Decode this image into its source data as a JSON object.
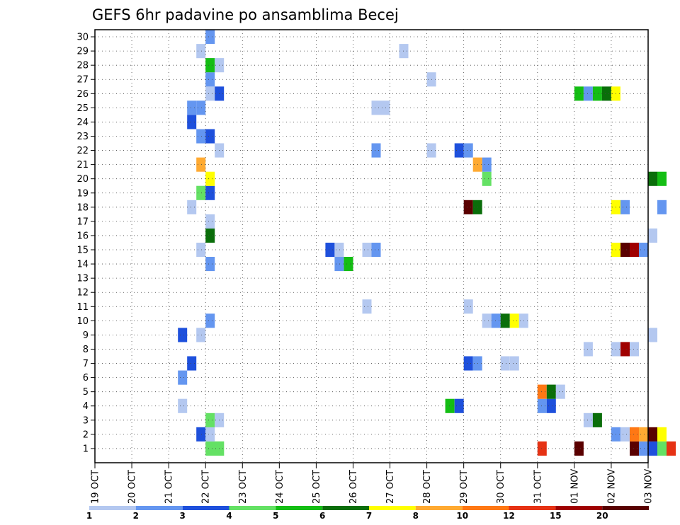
{
  "chart_data": {
    "type": "heatmap",
    "title": "GEFS 6hr padavine po ansamblima Becej",
    "xlabel": "",
    "ylabel": "",
    "x_tick_labels": [
      "19 OCT",
      "20 OCT",
      "21 OCT",
      "22 OCT",
      "23 OCT",
      "24 OCT",
      "25 OCT",
      "26 OCT",
      "27 OCT",
      "28 OCT",
      "29 OCT",
      "30 OCT",
      "31 OCT",
      "01 NOV",
      "02 NOV",
      "03 NOV"
    ],
    "y_tick_labels": [
      "1",
      "2",
      "3",
      "4",
      "5",
      "6",
      "7",
      "8",
      "9",
      "10",
      "11",
      "12",
      "13",
      "14",
      "15",
      "16",
      "17",
      "18",
      "19",
      "20",
      "21",
      "22",
      "23",
      "24",
      "25",
      "26",
      "27",
      "28",
      "29",
      "30"
    ],
    "time_step_hours": 6,
    "grid": true,
    "legend_placement": "bottom",
    "legend": {
      "colors": [
        "#b4c8f0",
        "#6496f0",
        "#1e50dc",
        "#64e164",
        "#14be14",
        "#0a6e0a",
        "#ffff00",
        "#ffaa32",
        "#ff7814",
        "#e63214",
        "#a00000",
        "#5a0000"
      ],
      "labels": [
        "1",
        "2",
        "3",
        "4",
        "5",
        "6",
        "7",
        "8",
        "10",
        "12",
        "15",
        "20"
      ]
    },
    "color_bins": [
      1,
      2,
      3,
      4,
      5,
      6,
      7,
      8,
      10,
      12,
      15,
      20
    ],
    "cells": [
      [
        0,
        12,
        4,
        2
      ],
      [
        0,
        13,
        4,
        1
      ],
      [
        0,
        48,
        10
      ],
      [
        0,
        52,
        12
      ],
      [
        0,
        58,
        12
      ],
      [
        0,
        59,
        2
      ],
      [
        0,
        60,
        3
      ],
      [
        0,
        61,
        4
      ],
      [
        0,
        62,
        10
      ],
      [
        1,
        11,
        3
      ],
      [
        1,
        12,
        1
      ],
      [
        1,
        56,
        2
      ],
      [
        1,
        57,
        1
      ],
      [
        1,
        58,
        9
      ],
      [
        1,
        59,
        8
      ],
      [
        1,
        60,
        12
      ],
      [
        1,
        61,
        7
      ],
      [
        2,
        12,
        4
      ],
      [
        2,
        13,
        1
      ],
      [
        2,
        53,
        1
      ],
      [
        2,
        54,
        6
      ],
      [
        3,
        9,
        1
      ],
      [
        3,
        38,
        5
      ],
      [
        3,
        39,
        3
      ],
      [
        3,
        48,
        2
      ],
      [
        3,
        49,
        3
      ],
      [
        4,
        48,
        9
      ],
      [
        4,
        49,
        6
      ],
      [
        4,
        50,
        1
      ],
      [
        5,
        9,
        2
      ],
      [
        6,
        10,
        3
      ],
      [
        6,
        40,
        3
      ],
      [
        6,
        41,
        2
      ],
      [
        6,
        44,
        1
      ],
      [
        6,
        45,
        1
      ],
      [
        7,
        53,
        1
      ],
      [
        7,
        56,
        1
      ],
      [
        7,
        57,
        11
      ],
      [
        7,
        58,
        1
      ],
      [
        8,
        9,
        3
      ],
      [
        8,
        11,
        1
      ],
      [
        8,
        60,
        1
      ],
      [
        9,
        12,
        2
      ],
      [
        9,
        42,
        1
      ],
      [
        9,
        43,
        2
      ],
      [
        9,
        44,
        6
      ],
      [
        9,
        45,
        7
      ],
      [
        9,
        46,
        1
      ],
      [
        10,
        29,
        1
      ],
      [
        10,
        40,
        1
      ],
      [
        13,
        12,
        2
      ],
      [
        13,
        26,
        2
      ],
      [
        13,
        27,
        5
      ],
      [
        14,
        11,
        1
      ],
      [
        14,
        25,
        3
      ],
      [
        14,
        26,
        1
      ],
      [
        14,
        29,
        1
      ],
      [
        14,
        30,
        2
      ],
      [
        14,
        56,
        7
      ],
      [
        14,
        57,
        12
      ],
      [
        14,
        58,
        11
      ],
      [
        14,
        59,
        2
      ],
      [
        15,
        12,
        6
      ],
      [
        15,
        60,
        1
      ],
      [
        16,
        12,
        1
      ],
      [
        17,
        10,
        1
      ],
      [
        17,
        40,
        12
      ],
      [
        17,
        41,
        6
      ],
      [
        17,
        56,
        7
      ],
      [
        17,
        57,
        2
      ],
      [
        17,
        61,
        2
      ],
      [
        18,
        11,
        4
      ],
      [
        18,
        12,
        3
      ],
      [
        19,
        12,
        7
      ],
      [
        19,
        42,
        4
      ],
      [
        19,
        60,
        6
      ],
      [
        19,
        61,
        5
      ],
      [
        20,
        11,
        8
      ],
      [
        20,
        42,
        2
      ],
      [
        20,
        41,
        8
      ],
      [
        21,
        13,
        1
      ],
      [
        21,
        30,
        2
      ],
      [
        21,
        36,
        1
      ],
      [
        21,
        39,
        3
      ],
      [
        21,
        40,
        2
      ],
      [
        22,
        11,
        2
      ],
      [
        22,
        12,
        3
      ],
      [
        23,
        10,
        3
      ],
      [
        24,
        10,
        2
      ],
      [
        24,
        11,
        2
      ],
      [
        24,
        30,
        1
      ],
      [
        24,
        31,
        1
      ],
      [
        25,
        12,
        1
      ],
      [
        25,
        13,
        3
      ],
      [
        25,
        52,
        5
      ],
      [
        25,
        53,
        2
      ],
      [
        25,
        54,
        5
      ],
      [
        25,
        55,
        6
      ],
      [
        25,
        56,
        7
      ],
      [
        26,
        12,
        2
      ],
      [
        26,
        36,
        1
      ],
      [
        27,
        12,
        5
      ],
      [
        27,
        13,
        1
      ],
      [
        28,
        11,
        1
      ],
      [
        28,
        33,
        1
      ],
      [
        29,
        12,
        2
      ]
    ]
  }
}
